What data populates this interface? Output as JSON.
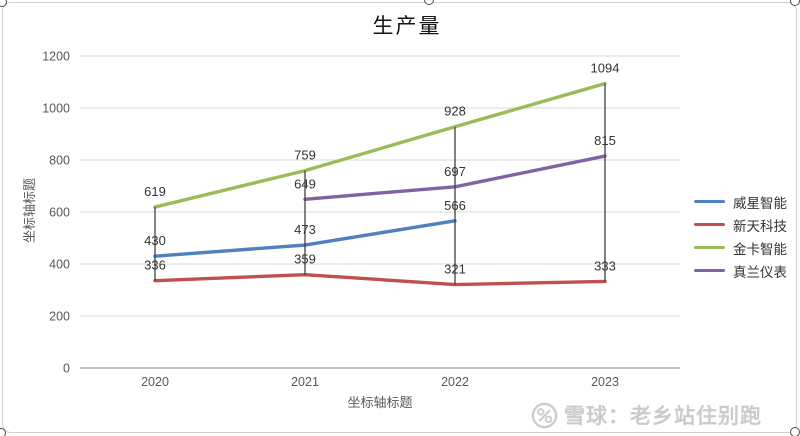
{
  "chart_data": {
    "type": "line",
    "title": "生产量",
    "x_axis_title": "坐标轴标题",
    "y_axis_title": "坐标轴标题",
    "categories": [
      "2020",
      "2021",
      "2022",
      "2023"
    ],
    "series": [
      {
        "name": "威星智能",
        "color": "#4F81BD",
        "values": [
          430,
          473,
          566,
          null
        ]
      },
      {
        "name": "新天科技",
        "color": "#C0504D",
        "values": [
          336,
          359,
          321,
          333
        ]
      },
      {
        "name": "金卡智能",
        "color": "#9BBB59",
        "values": [
          619,
          759,
          928,
          1094
        ]
      },
      {
        "name": "真兰仪表",
        "color": "#8064A2",
        "values": [
          null,
          649,
          697,
          815
        ]
      }
    ],
    "ylim": [
      0,
      1200
    ],
    "y_ticks": [
      0,
      200,
      400,
      600,
      800,
      1000,
      1200
    ],
    "grid": true,
    "legend_position": "right",
    "data_labels": true,
    "high_low_lines": true
  },
  "colors": {
    "gridline": "#d9d9d9",
    "axis_line": "#9d9d9d",
    "tick_label": "#595959",
    "data_label": "#333333",
    "high_low_line": "#404040",
    "axis_title": "#595959",
    "legend_text": "#333333",
    "title": "#141414",
    "frame_border": "#cdd2d0",
    "handle_border": "#4d4d4d"
  },
  "watermark": {
    "text": "雪球：老乡站住别跑",
    "color": "#cbcbcb"
  }
}
